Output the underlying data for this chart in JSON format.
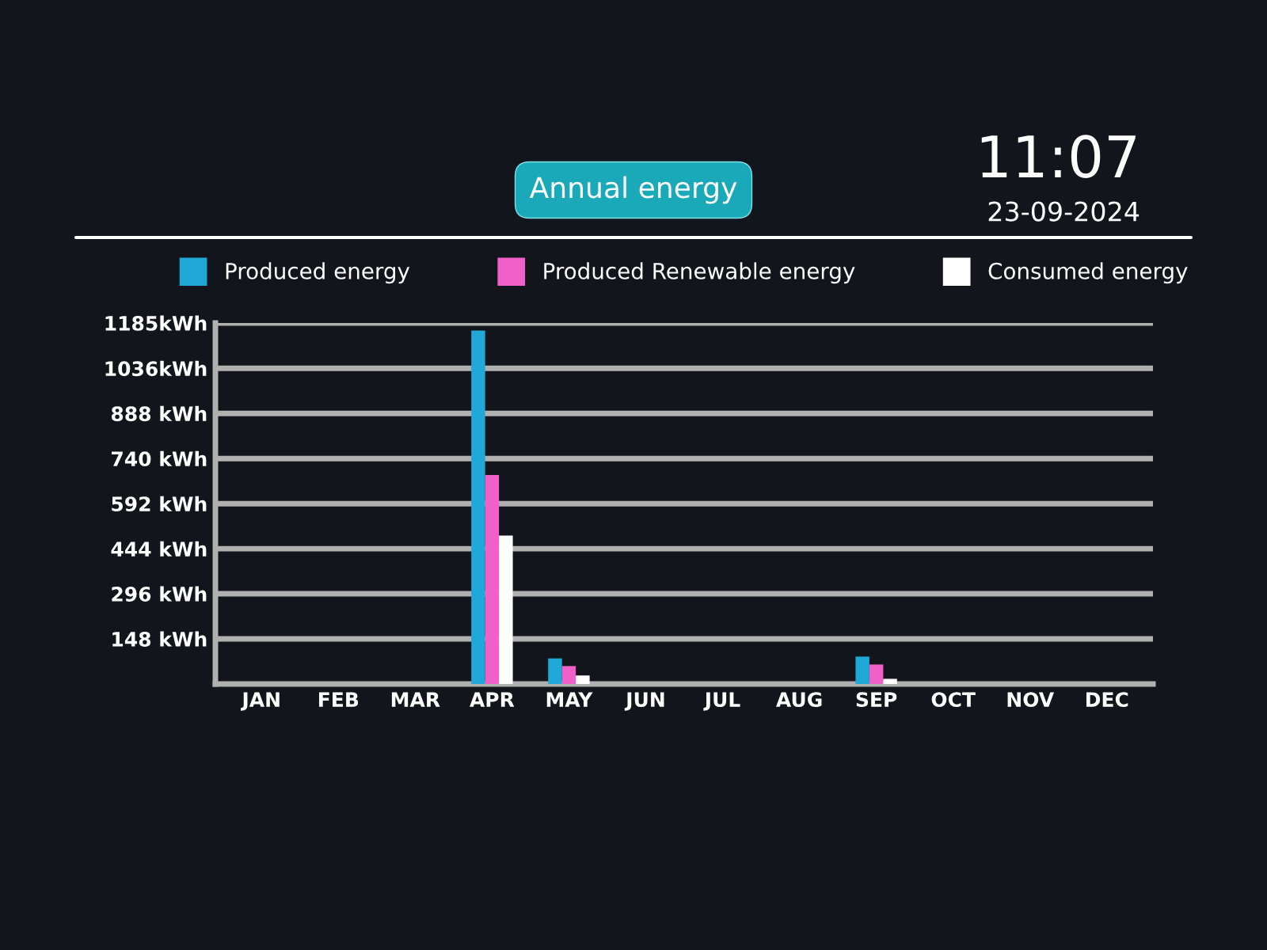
{
  "chart_data": {
    "type": "bar",
    "title": "Annual energy",
    "annotations": [
      "11:07",
      "23-09-2024"
    ],
    "categories": [
      "JAN",
      "FEB",
      "MAR",
      "APR",
      "MAY",
      "JUN",
      "JUL",
      "AUG",
      "SEP",
      "OCT",
      "NOV",
      "DEC"
    ],
    "series": [
      {
        "name": "Produced energy",
        "color": "#1fa8d8",
        "values": [
          0,
          0,
          0,
          1160,
          84,
          0,
          0,
          0,
          90,
          0,
          0,
          0
        ]
      },
      {
        "name": "Produced Renewable energy",
        "color": "#f060c8",
        "values": [
          0,
          0,
          0,
          686,
          59,
          0,
          0,
          0,
          64,
          0,
          0,
          0
        ]
      },
      {
        "name": "Consumed energy",
        "color": "#ffffff",
        "values": [
          0,
          0,
          0,
          487,
          28,
          0,
          0,
          0,
          17,
          0,
          0,
          0
        ]
      }
    ],
    "ylim": [
      0,
      1185
    ],
    "yticks": [
      {
        "value": 148,
        "label": "148 kWh"
      },
      {
        "value": 296,
        "label": "296 kWh"
      },
      {
        "value": 444,
        "label": "444 kWh"
      },
      {
        "value": 592,
        "label": "592 kWh"
      },
      {
        "value": 740,
        "label": "740 kWh"
      },
      {
        "value": 888,
        "label": "888 kWh"
      },
      {
        "value": 1036,
        "label": "1036kWh"
      },
      {
        "value": 1185,
        "label": "1185kWh"
      }
    ],
    "grid": "y",
    "legend": "top"
  }
}
